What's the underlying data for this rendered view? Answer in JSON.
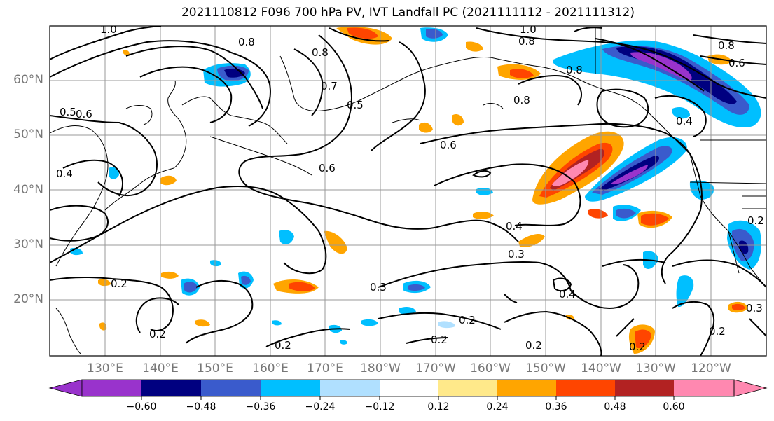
{
  "title": "2021110812 F096 700 hPa PV, IVT Landfall PC (2021111112 - 2021111312)",
  "lat_labels": [
    "60°N",
    "50°N",
    "40°N",
    "30°N",
    "20°N"
  ],
  "lon_labels": [
    "130°E",
    "140°E",
    "150°E",
    "160°E",
    "170°E",
    "180°W",
    "170°W",
    "160°W",
    "150°W",
    "140°W",
    "130°W",
    "120°W"
  ],
  "colorbar": {
    "ticks": [
      "−0.60",
      "−0.48",
      "−0.36",
      "−0.24",
      "−0.12",
      "0.12",
      "0.24",
      "0.36",
      "0.48",
      "0.60"
    ],
    "colors": [
      "#9933cc",
      "#000080",
      "#3a5bcc",
      "#00bfff",
      "#b0e0ff",
      "#ffffff",
      "#ffe98a",
      "#ffa500",
      "#ff4500",
      "#b22222",
      "#ff88b0"
    ]
  },
  "contour_labels": [
    "1.0",
    "0.8",
    "0.8",
    "0.7",
    "0.5",
    "0.6",
    "0.5",
    "0.4",
    "0.6",
    "0.6",
    "1.0",
    "0.8",
    "0.8",
    "0.6",
    "0.8",
    "0.8",
    "0.4",
    "0.4",
    "0.3",
    "0.4",
    "0.2",
    "0.3",
    "0.2",
    "0.2",
    "0.2",
    "0.2",
    "0.2",
    "0.2",
    "0.2",
    "0.3",
    "0.2"
  ]
}
